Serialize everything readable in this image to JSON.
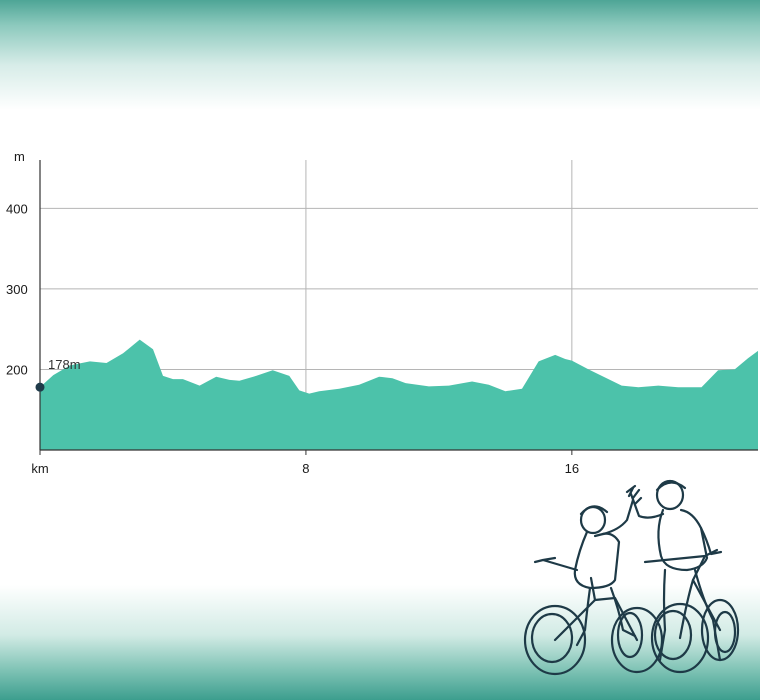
{
  "chart_data": {
    "type": "area",
    "ylabel": "m",
    "xlabel": "km",
    "xlim": [
      0,
      21.6
    ],
    "ylim": [
      100,
      460
    ],
    "x_ticks": [
      {
        "value": 0,
        "label": "km"
      },
      {
        "value": 8,
        "label": "8"
      },
      {
        "value": 16,
        "label": "16"
      }
    ],
    "y_ticks": [
      {
        "value": 200,
        "label": "200"
      },
      {
        "value": 300,
        "label": "300"
      },
      {
        "value": 400,
        "label": "400"
      }
    ],
    "grid": true,
    "fill_color": "#4cc2aa",
    "marker_color": "#1f3b4a",
    "series": [
      {
        "x": [
          0,
          0.4,
          0.9,
          1.5,
          2.0,
          2.5,
          3.0,
          3.4,
          3.7,
          4.0,
          4.3,
          4.8,
          5.3,
          5.7,
          6.0,
          6.5,
          7.0,
          7.5,
          7.8,
          8.1,
          8.4,
          9.0,
          9.6,
          10.2,
          10.6,
          11.0,
          11.7,
          12.3,
          13.0,
          13.5,
          14.0,
          14.5,
          15.0,
          15.5,
          15.8,
          16.0,
          16.5,
          17.0,
          17.5,
          18.0,
          18.6,
          19.2,
          19.9,
          20.4,
          20.9,
          21.3,
          21.6
        ],
        "y": [
          178,
          193,
          205,
          210,
          208,
          220,
          237,
          225,
          192,
          188,
          188,
          180,
          191,
          187,
          186,
          192,
          199,
          192,
          174,
          170,
          173,
          176,
          181,
          191,
          189,
          183,
          179,
          180,
          185,
          181,
          173,
          176,
          210,
          218,
          213,
          211,
          200,
          190,
          180,
          178,
          180,
          178,
          178,
          199,
          200,
          214,
          223
        ]
      }
    ],
    "marker": {
      "x": 0,
      "y": 178,
      "label": "178m"
    }
  },
  "colors": {
    "gridline": "#b5b5b5",
    "axis": "#333333",
    "illustration_stroke": "#1e3a47"
  },
  "illustration": {
    "icon": "cyclists-high-five-line-art"
  }
}
